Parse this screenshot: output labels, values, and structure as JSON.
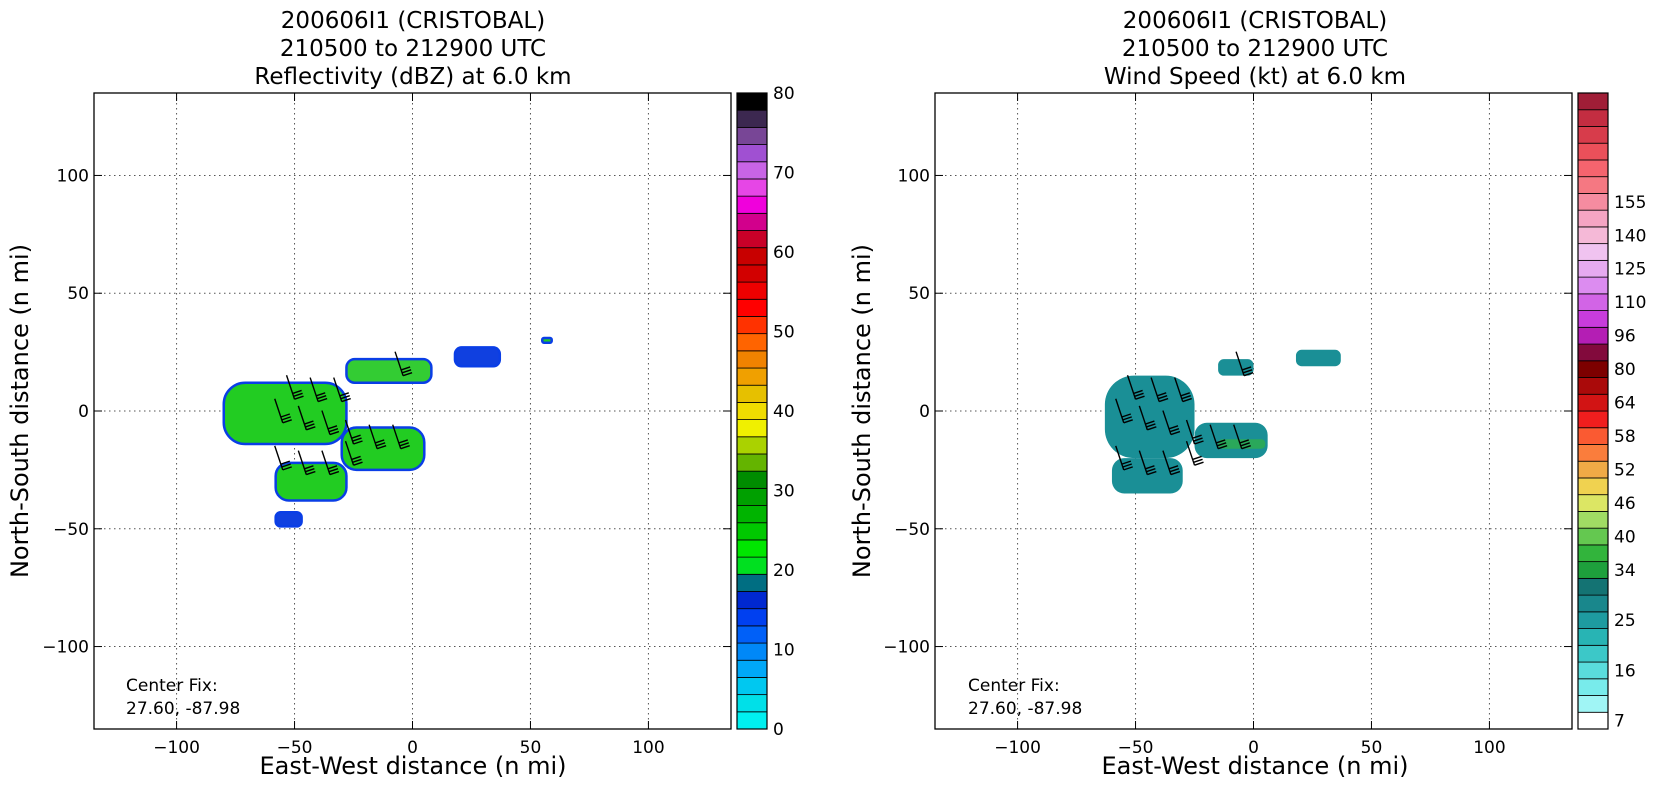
{
  "panels": [
    {
      "title_lines": [
        "200606I1 (CRISTOBAL)",
        "210500 to 212900 UTC",
        "Reflectivity (dBZ) at 6.0 km"
      ],
      "xlabel": "East-West distance (n mi)",
      "ylabel": "North-South distance (n mi)",
      "center_fix_label": "Center Fix:",
      "center_fix_value": "27.60, -87.98",
      "colorbar": {
        "tick_labels": [
          "0",
          "10",
          "20",
          "30",
          "40",
          "50",
          "60",
          "70",
          "80"
        ],
        "tick_values": [
          0,
          10,
          20,
          30,
          40,
          50,
          60,
          70,
          80
        ],
        "range": [
          0,
          80
        ],
        "colors": [
          "#00f0f0",
          "#00e0e8",
          "#00c8f0",
          "#00a8f8",
          "#0088f8",
          "#0060f8",
          "#0040f0",
          "#0028d0",
          "#006e82",
          "#00e020",
          "#00e600",
          "#00c800",
          "#00b400",
          "#00a000",
          "#008c00",
          "#64b400",
          "#aad200",
          "#f0f000",
          "#f0dc00",
          "#e6c000",
          "#f0a000",
          "#f08200",
          "#ff6400",
          "#ff3200",
          "#ff0000",
          "#ee0000",
          "#d20000",
          "#c80000",
          "#c80028",
          "#d2008c",
          "#f000dc",
          "#e646e6",
          "#c864e6",
          "#a050d2",
          "#784696",
          "#3c2850",
          "#000000"
        ]
      }
    },
    {
      "title_lines": [
        "200606I1 (CRISTOBAL)",
        "210500 to 212900 UTC",
        "Wind Speed (kt) at 6.0 km"
      ],
      "xlabel": "East-West distance (n mi)",
      "ylabel": "North-South distance (n mi)",
      "center_fix_label": "Center Fix:",
      "center_fix_value": "27.60, -87.98",
      "colorbar": {
        "tick_labels": [
          "7",
          "16",
          "25",
          "34",
          "40",
          "46",
          "52",
          "58",
          "64",
          "80",
          "96",
          "110",
          "125",
          "140",
          "155"
        ],
        "colors": [
          "#ffffff",
          "#a0f5f5",
          "#78ebeb",
          "#5adcdc",
          "#3cc8c8",
          "#28b4b4",
          "#1e9ba0",
          "#19878c",
          "#147373",
          "#1ea03c",
          "#32b43c",
          "#64c850",
          "#a0dc64",
          "#dce664",
          "#f0d250",
          "#f0aa46",
          "#fa7d3c",
          "#fa5a32",
          "#f01e1e",
          "#d21414",
          "#aa0a0a",
          "#7d0000",
          "#820a3c",
          "#b41eb4",
          "#c83cdc",
          "#d264e6",
          "#dc8cf0",
          "#e6aaf0",
          "#f0c3f0",
          "#f5b9d7",
          "#f5a5c3",
          "#f58ca0",
          "#f57882",
          "#f5646e",
          "#eb505a",
          "#d73c4b",
          "#c32d41",
          "#a01e37"
        ],
        "tick_rows": [
          0,
          3,
          6,
          9,
          11,
          13,
          15,
          17,
          19,
          21,
          23,
          25,
          27,
          29,
          31
        ]
      }
    }
  ],
  "chart_data": [
    {
      "type": "heatmap",
      "title": "200606I1 (CRISTOBAL) 210500 to 212900 UTC Reflectivity (dBZ) at 6.0 km",
      "xlabel": "East-West distance (n mi)",
      "ylabel": "North-South distance (n mi)",
      "xlim": [
        -135,
        135
      ],
      "ylim": [
        -135,
        135
      ],
      "xticks": [
        -100,
        -50,
        0,
        50,
        100
      ],
      "yticks": [
        -100,
        -50,
        0,
        50,
        100
      ],
      "grid": true,
      "colorbar_label": "Reflectivity (dBZ)",
      "colorbar_range": [
        0,
        80
      ],
      "echo_regions": [
        {
          "x": [
            -80,
            -28
          ],
          "y": [
            -14,
            12
          ],
          "dominant_dBZ": 22
        },
        {
          "x": [
            -30,
            5
          ],
          "y": [
            -25,
            -7
          ],
          "dominant_dBZ": 22
        },
        {
          "x": [
            -58,
            -28
          ],
          "y": [
            -38,
            -22
          ],
          "dominant_dBZ": 22
        },
        {
          "x": [
            -28,
            8
          ],
          "y": [
            12,
            22
          ],
          "dominant_dBZ": 18
        },
        {
          "x": [
            18,
            37
          ],
          "y": [
            19,
            27
          ],
          "dominant_dBZ": 14
        },
        {
          "x": [
            55,
            59
          ],
          "y": [
            29,
            31
          ],
          "dominant_dBZ": 20
        },
        {
          "x": [
            -58,
            -47
          ],
          "y": [
            -49,
            -43
          ],
          "dominant_dBZ": 12
        }
      ],
      "wind_barbs": [
        {
          "x": -4,
          "y": 15
        },
        {
          "x": -50,
          "y": 5
        },
        {
          "x": -40,
          "y": 4
        },
        {
          "x": -30,
          "y": 4
        },
        {
          "x": -55,
          "y": -5
        },
        {
          "x": -45,
          "y": -8
        },
        {
          "x": -35,
          "y": -10
        },
        {
          "x": -25,
          "y": -14
        },
        {
          "x": -15,
          "y": -16
        },
        {
          "x": -5,
          "y": -16
        },
        {
          "x": -55,
          "y": -25
        },
        {
          "x": -45,
          "y": -27
        },
        {
          "x": -35,
          "y": -27
        },
        {
          "x": -25,
          "y": -23
        }
      ]
    },
    {
      "type": "heatmap",
      "title": "200606I1 (CRISTOBAL) 210500 to 212900 UTC Wind Speed (kt) at 6.0 km",
      "xlabel": "East-West distance (n mi)",
      "ylabel": "North-South distance (n mi)",
      "xlim": [
        -135,
        135
      ],
      "ylim": [
        -135,
        135
      ],
      "xticks": [
        -100,
        -50,
        0,
        50,
        100
      ],
      "yticks": [
        -100,
        -50,
        0,
        50,
        100
      ],
      "grid": true,
      "colorbar_label": "Wind Speed (kt)",
      "colorbar_ticks": [
        7,
        16,
        25,
        34,
        40,
        46,
        52,
        58,
        64,
        80,
        96,
        110,
        125,
        140,
        155
      ],
      "echo_regions": [
        {
          "x": [
            -63,
            -25
          ],
          "y": [
            -20,
            15
          ],
          "dominant_kt": 27
        },
        {
          "x": [
            -25,
            6
          ],
          "y": [
            -20,
            -5
          ],
          "dominant_kt": 30
        },
        {
          "x": [
            -60,
            -30
          ],
          "y": [
            -35,
            -20
          ],
          "dominant_kt": 27
        },
        {
          "x": [
            -15,
            0
          ],
          "y": [
            15,
            22
          ],
          "dominant_kt": 27
        },
        {
          "x": [
            18,
            37
          ],
          "y": [
            19,
            26
          ],
          "dominant_kt": 27
        }
      ],
      "wind_barbs": [
        {
          "x": -4,
          "y": 15
        },
        {
          "x": -50,
          "y": 5
        },
        {
          "x": -40,
          "y": 4
        },
        {
          "x": -30,
          "y": 4
        },
        {
          "x": -55,
          "y": -5
        },
        {
          "x": -45,
          "y": -8
        },
        {
          "x": -35,
          "y": -10
        },
        {
          "x": -25,
          "y": -14
        },
        {
          "x": -15,
          "y": -16
        },
        {
          "x": -5,
          "y": -16
        },
        {
          "x": -55,
          "y": -25
        },
        {
          "x": -45,
          "y": -27
        },
        {
          "x": -35,
          "y": -27
        },
        {
          "x": -25,
          "y": -23
        }
      ]
    }
  ]
}
